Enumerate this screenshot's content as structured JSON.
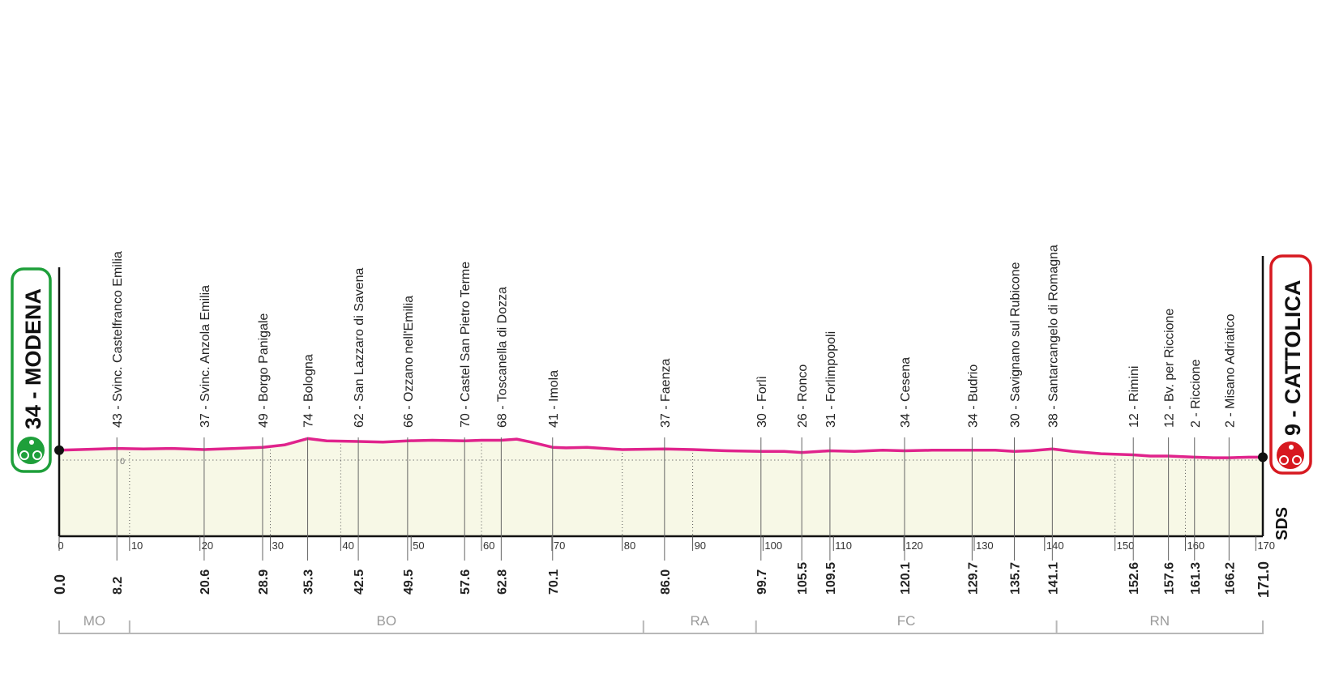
{
  "chart_data": {
    "type": "area",
    "x_range": [
      0,
      171
    ],
    "elevation_range": [
      0,
      100
    ],
    "start": {
      "label": "34 - MODENA",
      "km": "0.0",
      "color": "#1e9f3a"
    },
    "finish": {
      "label": "9 - CATTOLICA",
      "km": "171.0",
      "color": "#d71920"
    },
    "zero_label": "0",
    "logo": "SDS",
    "line_color": "#e0238c",
    "fill_color": "#f7f8e6",
    "x_ticks": [
      0,
      10,
      20,
      30,
      40,
      50,
      60,
      70,
      80,
      90,
      100,
      110,
      120,
      130,
      140,
      150,
      160,
      170
    ],
    "minor_km": [
      10,
      30,
      40,
      60,
      80,
      90,
      150,
      160
    ],
    "waypoints": [
      {
        "km": 8.2,
        "elev": 43,
        "label": "43 - Svinc. Castelfranco Emilia",
        "km_label": "8.2"
      },
      {
        "km": 20.6,
        "elev": 37,
        "label": "37 - Svinc. Anzola Emilia",
        "km_label": "20.6"
      },
      {
        "km": 28.9,
        "elev": 49,
        "label": "49 - Borgo Panigale",
        "km_label": "28.9"
      },
      {
        "km": 35.3,
        "elev": 74,
        "label": "74 - Bologna",
        "km_label": "35.3"
      },
      {
        "km": 42.5,
        "elev": 62,
        "label": "62 - San Lazzaro di Savena",
        "km_label": "42.5"
      },
      {
        "km": 49.5,
        "elev": 66,
        "label": "66 - Ozzano nell'Emilia",
        "km_label": "49.5"
      },
      {
        "km": 57.6,
        "elev": 70,
        "label": "70 - Castel San Pietro Terme",
        "km_label": "57.6"
      },
      {
        "km": 62.8,
        "elev": 68,
        "label": "68 - Toscanella di Dozza",
        "km_label": "62.8"
      },
      {
        "km": 70.1,
        "elev": 41,
        "label": "41 - Imola",
        "km_label": "70.1"
      },
      {
        "km": 86.0,
        "elev": 37,
        "label": "37 - Faenza",
        "km_label": "86.0"
      },
      {
        "km": 99.7,
        "elev": 30,
        "label": "30 - Forlì",
        "km_label": "99.7"
      },
      {
        "km": 105.5,
        "elev": 26,
        "label": "26 - Ronco",
        "km_label": "105.5"
      },
      {
        "km": 109.5,
        "elev": 31,
        "label": "31 - Forlimpopoli",
        "km_label": "109.5"
      },
      {
        "km": 120.1,
        "elev": 34,
        "label": "34 - Cesena",
        "km_label": "120.1"
      },
      {
        "km": 129.7,
        "elev": 34,
        "label": "34 - Budrio",
        "km_label": "129.7"
      },
      {
        "km": 135.7,
        "elev": 30,
        "label": "30 - Savignano sul Rubicone",
        "km_label": "135.7"
      },
      {
        "km": 141.1,
        "elev": 38,
        "label": "38 - Santarcangelo di Romagna",
        "km_label": "141.1"
      },
      {
        "km": 152.6,
        "elev": 12,
        "label": "12 - Rimini",
        "km_label": "152.6"
      },
      {
        "km": 157.6,
        "elev": 12,
        "label": "12 - Bv. per Riccione",
        "km_label": "157.6"
      },
      {
        "km": 161.3,
        "elev": 2,
        "label": "2 - Riccione",
        "km_label": "161.3"
      },
      {
        "km": 166.2,
        "elev": 2,
        "label": "2 - Misano Adriatico",
        "km_label": "166.2"
      }
    ],
    "profile": [
      [
        0,
        34
      ],
      [
        3,
        36
      ],
      [
        8.2,
        40
      ],
      [
        12,
        38
      ],
      [
        16,
        40
      ],
      [
        20.6,
        36
      ],
      [
        25,
        40
      ],
      [
        28.9,
        44
      ],
      [
        32,
        52
      ],
      [
        35.3,
        74
      ],
      [
        38,
        66
      ],
      [
        42.5,
        64
      ],
      [
        46,
        62
      ],
      [
        49.5,
        66
      ],
      [
        53,
        68
      ],
      [
        57.6,
        66
      ],
      [
        60,
        68
      ],
      [
        62.8,
        68
      ],
      [
        65,
        72
      ],
      [
        67,
        62
      ],
      [
        70.1,
        44
      ],
      [
        72,
        42
      ],
      [
        75,
        44
      ],
      [
        80,
        36
      ],
      [
        86.0,
        38
      ],
      [
        90,
        36
      ],
      [
        95,
        32
      ],
      [
        99.7,
        30
      ],
      [
        103,
        30
      ],
      [
        105.5,
        26
      ],
      [
        109.5,
        32
      ],
      [
        113,
        30
      ],
      [
        117,
        34
      ],
      [
        120.1,
        32
      ],
      [
        124,
        34
      ],
      [
        129.7,
        34
      ],
      [
        133,
        34
      ],
      [
        135.7,
        30
      ],
      [
        138,
        32
      ],
      [
        141.1,
        38
      ],
      [
        144,
        30
      ],
      [
        148,
        22
      ],
      [
        152.6,
        18
      ],
      [
        155,
        14
      ],
      [
        157.6,
        14
      ],
      [
        161.3,
        10
      ],
      [
        164,
        8
      ],
      [
        166.2,
        8
      ],
      [
        169,
        10
      ],
      [
        171,
        10
      ]
    ],
    "provinces": [
      {
        "code": "MO",
        "from": 0,
        "to": 10
      },
      {
        "code": "BO",
        "from": 10,
        "to": 83
      },
      {
        "code": "RA",
        "from": 83,
        "to": 99
      },
      {
        "code": "FC",
        "from": 99,
        "to": 141.7
      },
      {
        "code": "RN",
        "from": 141.7,
        "to": 171
      }
    ]
  }
}
